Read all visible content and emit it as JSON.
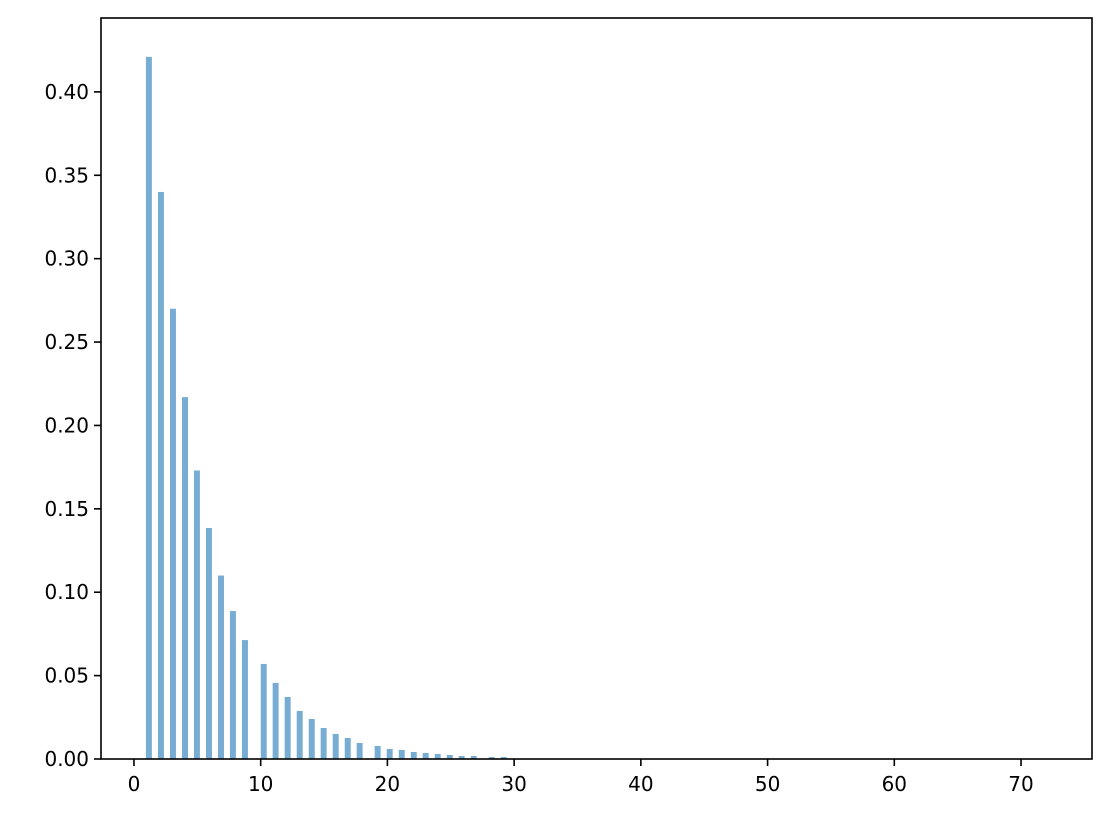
{
  "chart_data": {
    "type": "bar",
    "title": "",
    "xlabel": "",
    "ylabel": "",
    "xlim": [
      -2.6,
      75.6
    ],
    "ylim": [
      0,
      0.4443
    ],
    "grid": false,
    "bar_width": 0.47,
    "color": "#77acd3",
    "xticks": [
      0,
      10,
      20,
      30,
      40,
      50,
      60,
      70
    ],
    "xtick_labels": [
      "0",
      "10",
      "20",
      "30",
      "40",
      "50",
      "60",
      "70"
    ],
    "yticks": [
      0,
      0.05,
      0.1,
      0.15,
      0.2,
      0.25,
      0.3,
      0.35,
      0.4
    ],
    "ytick_labels": [
      "0.00",
      "0.05",
      "0.10",
      "0.15",
      "0.20",
      "0.25",
      "0.30",
      "0.35",
      "0.40"
    ],
    "x": [
      1.18,
      2.13,
      3.08,
      4.03,
      4.97,
      5.92,
      6.87,
      7.81,
      8.76,
      10.24,
      11.18,
      12.13,
      13.08,
      14.03,
      14.97,
      15.92,
      16.87,
      17.81,
      19.23,
      20.18,
      21.13,
      22.08,
      23.02,
      23.97,
      24.92,
      25.86,
      26.81,
      28.23,
      29.18
    ],
    "values": [
      0.421,
      0.34,
      0.27,
      0.217,
      0.173,
      0.1385,
      0.11,
      0.0887,
      0.0713,
      0.057,
      0.0456,
      0.0372,
      0.0288,
      0.024,
      0.0186,
      0.015,
      0.0126,
      0.0096,
      0.0078,
      0.006,
      0.0054,
      0.0042,
      0.0036,
      0.003,
      0.0024,
      0.0018,
      0.0018,
      0.0012,
      0.0012
    ]
  }
}
